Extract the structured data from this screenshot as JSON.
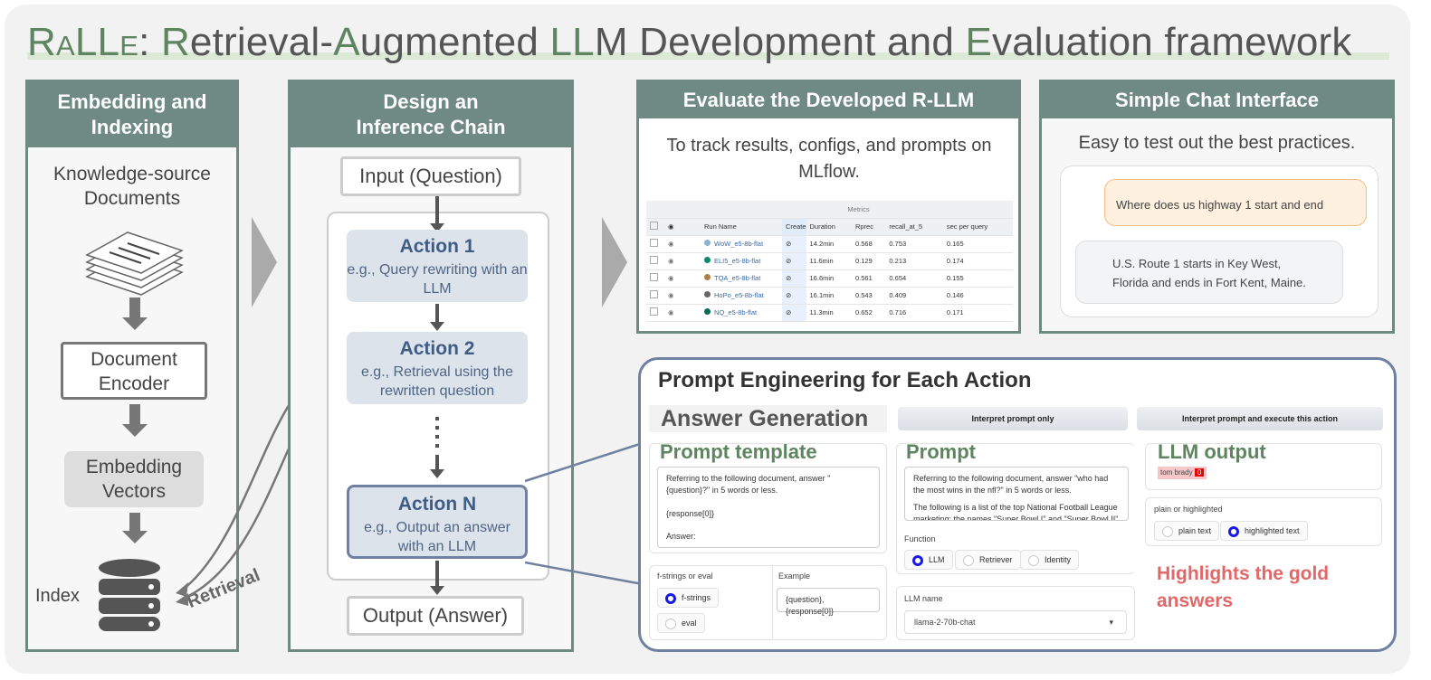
{
  "title": {
    "ralle": "RaLLe",
    "colon": ": ",
    "r": "R",
    "p1": "etrieval-",
    "a": "A",
    "p2": "ugmented ",
    "llm": "LL",
    "p3": "M Development and ",
    "e": "E",
    "p4": "valuation framework"
  },
  "colors": {
    "accent_green": "#5e8560",
    "panel_header": "#6f8a82",
    "action_blue": "#3f5c85",
    "highlight_red": "#e06060"
  },
  "embedding": {
    "header": "Embedding and Indexing",
    "docs_label": "Knowledge-source Documents",
    "encoder": "Document Encoder",
    "vectors": "Embedding Vectors",
    "index": "Index",
    "retrieval": "Retrieval",
    "icons": [
      "documents-icon",
      "database-icon"
    ]
  },
  "chain": {
    "header": "Design an Inference Chain",
    "input": "Input (Question)",
    "output": "Output (Answer)",
    "actions": [
      {
        "title": "Action 1",
        "desc": "e.g., Query rewriting with an LLM"
      },
      {
        "title": "Action 2",
        "desc": "e.g., Retrieval using the rewritten question"
      },
      {
        "title": "Action N",
        "desc": "e.g., Output an answer with an LLM"
      }
    ]
  },
  "evaluate": {
    "header": "Evaluate the Developed R-LLM",
    "desc": "To track results, configs, and prompts on MLflow.",
    "table": {
      "group": "Metrics",
      "columns": [
        "Run Name",
        "Create",
        "Duration",
        "Rprec",
        "recall_at_5",
        "sec per query"
      ],
      "rows": [
        {
          "name": "WoW_e5-8b-flat",
          "color": "#8fb0d0",
          "duration": "14.2min",
          "rprec": "0.568",
          "recall": "0.753",
          "spq": "0.165"
        },
        {
          "name": "ELI5_e5-8b-flat",
          "color": "#0e8a6a",
          "duration": "11.6min",
          "rprec": "0.129",
          "recall": "0.213",
          "spq": "0.174"
        },
        {
          "name": "TQA_e5-8b-flat",
          "color": "#a88040",
          "duration": "16.6min",
          "rprec": "0.561",
          "recall": "0.654",
          "spq": "0.155"
        },
        {
          "name": "HoPo_e5-8b-flat",
          "color": "#666666",
          "duration": "16.1min",
          "rprec": "0.543",
          "recall": "0.409",
          "spq": "0.146"
        },
        {
          "name": "NQ_e5-8b-flat",
          "color": "#0a6a5a",
          "duration": "11.3min",
          "rprec": "0.652",
          "recall": "0.716",
          "spq": "0.171"
        }
      ]
    }
  },
  "chat": {
    "header": "Simple Chat Interface",
    "desc": "Easy to test out the best practices.",
    "user_msg": "Where does us highway 1 start and end",
    "bot_msg": "U.S. Route 1 starts in Key West, Florida and ends in Fort Kent, Maine."
  },
  "prompt_eng": {
    "title": "Prompt Engineering for Each Action",
    "section": "Answer Generation",
    "btn_interpret": "Interpret prompt only",
    "btn_execute": "Interpret prompt and execute this action",
    "template_title": "Prompt template",
    "template_lines": [
      "Referring to the following document, answer \"{question}?\" in 5 words or less.",
      "{response[0]}",
      "Answer:"
    ],
    "fmode_label": "f-strings or eval",
    "fmode_options": [
      "f-strings",
      "eval"
    ],
    "fmode_selected": "f-strings",
    "example_label": "Example",
    "example_value": "{question}, {response[0]}",
    "prompt_title": "Prompt",
    "prompt_lines": [
      "Referring to the following document, answer \"who had the most wins in the nfl?\" in 5 words or less.",
      "The following is a list of the top National Football League marketing; the names \"Super Bowl I\" and \"Super Bowl II\""
    ],
    "function_label": "Function",
    "function_options": [
      "LLM",
      "Retriever",
      "Identity"
    ],
    "function_selected": "LLM",
    "llm_label": "LLM name",
    "llm_value": "llama-2-70b-chat",
    "output_title": "LLM output",
    "output_value": "tom brady",
    "output_badge": "0",
    "display_label": "plain or highlighted",
    "display_options": [
      "plain text",
      "highlighted text"
    ],
    "display_selected": "highlighted text",
    "note": "Highlights the gold answers"
  }
}
